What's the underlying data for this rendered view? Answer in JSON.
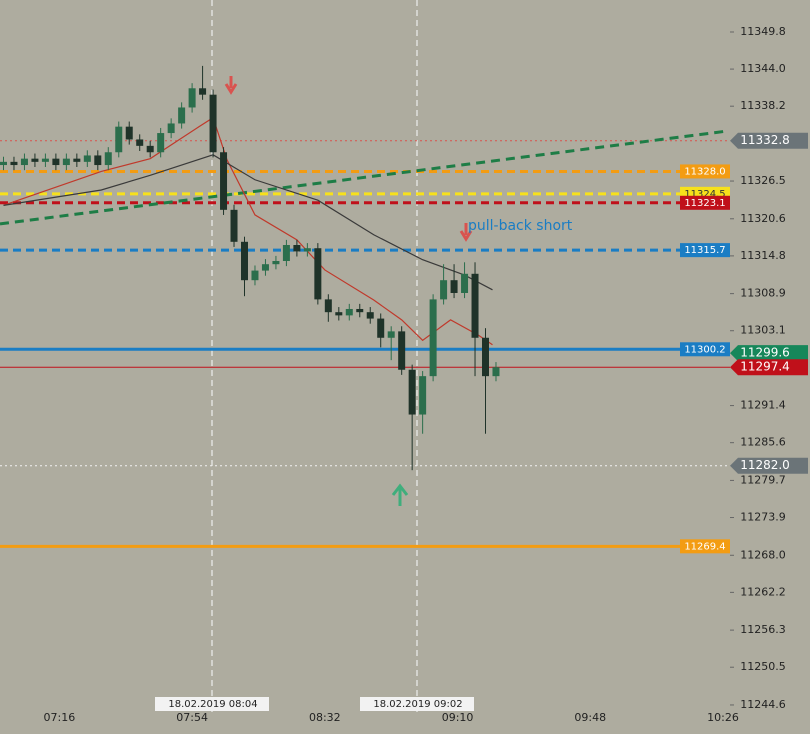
{
  "chart_data": {
    "type": "candlestick",
    "xlim": [
      "06:59",
      "10:28"
    ],
    "xticks": [
      "07:16",
      "07:54",
      "08:32",
      "09:10",
      "09:48",
      "10:26"
    ],
    "ylim": [
      11243.5,
      11354.8
    ],
    "yticks": [
      11349.8,
      {
        "value": 11344,
        "label": "11344.0"
      },
      11338.2,
      11326.5,
      11320.6,
      11314.8,
      11308.9,
      11303.1,
      11291.4,
      11285.6,
      11279.7,
      11273.9,
      {
        "value": 11268,
        "label": "11268.0"
      },
      11262.2,
      11256.3,
      11250.5,
      11244.6
    ],
    "up_color": "#2b6e4c",
    "down_color": "#1f3329",
    "candles": {
      "x": [
        "07:00",
        "07:03",
        "07:06",
        "07:09",
        "07:12",
        "07:15",
        "07:18",
        "07:21",
        "07:24",
        "07:27",
        "07:30",
        "07:33",
        "07:36",
        "07:39",
        "07:42",
        "07:45",
        "07:48",
        "07:51",
        "07:54",
        "07:57",
        "08:00",
        "08:03",
        "08:06",
        "08:09",
        "08:12",
        "08:15",
        "08:18",
        "08:21",
        "08:24",
        "08:27",
        "08:30",
        "08:33",
        "08:36",
        "08:39",
        "08:42",
        "08:45",
        "08:48",
        "08:51",
        "08:54",
        "08:57",
        "09:00",
        "09:03",
        "09:06",
        "09:09",
        "09:12",
        "09:15",
        "09:18",
        "09:21"
      ],
      "open": [
        11329,
        11329.5,
        11329,
        11330,
        11329.5,
        11330,
        11329,
        11330,
        11329.5,
        11330.5,
        11329,
        11331,
        11335,
        11333,
        11332,
        11331,
        11334,
        11335.5,
        11338,
        11341,
        11340,
        11331,
        11322,
        11317,
        11311,
        11312.5,
        11313.5,
        11314,
        11316.5,
        11315.5,
        11316,
        11308,
        11306,
        11305.5,
        11306.5,
        11306,
        11305,
        11302,
        11303,
        11297,
        11290,
        11296,
        11308,
        11311,
        11309,
        11312,
        11302,
        11296
      ],
      "high": [
        11330.3,
        11330.3,
        11330.8,
        11330.8,
        11330.8,
        11330.8,
        11330.8,
        11330.8,
        11331.3,
        11331.3,
        11331.8,
        11335.8,
        11335.8,
        11333.8,
        11332.8,
        11334.8,
        11336.3,
        11338.8,
        11341.8,
        11344.5,
        11340.8,
        11331.8,
        11322.8,
        11317.8,
        11313.3,
        11314.3,
        11314.8,
        11317.3,
        11317.3,
        11316.8,
        11316.8,
        11308.8,
        11306.8,
        11307.3,
        11307.3,
        11306.8,
        11305.8,
        11303.8,
        11303.8,
        11297.8,
        11296.8,
        11308.8,
        11313.5,
        11313.5,
        11313.8,
        11313.8,
        11303.5,
        11298.2
      ],
      "low": [
        11328.2,
        11328.2,
        11328.2,
        11328.7,
        11328.7,
        11328.2,
        11328.2,
        11328.7,
        11328.7,
        11328.2,
        11328.2,
        11330.2,
        11332.2,
        11331.2,
        11330.2,
        11330.2,
        11333.2,
        11334.7,
        11337.2,
        11339.2,
        11330.2,
        11321.2,
        11316.2,
        11308.5,
        11310.2,
        11311.7,
        11312.7,
        11313.2,
        11314.7,
        11314.7,
        11307.2,
        11304.5,
        11304.7,
        11304.7,
        11305.2,
        11304.2,
        11300.5,
        11298.5,
        11296.2,
        11281.3,
        11287,
        11295.2,
        11307.2,
        11308.2,
        11308.2,
        11296,
        11287,
        11295.2
      ],
      "close": [
        11329.5,
        11329,
        11330,
        11329.5,
        11330,
        11329,
        11330,
        11329.5,
        11330.5,
        11329,
        11331,
        11335,
        11333,
        11332,
        11331,
        11334,
        11335.5,
        11338,
        11341,
        11340,
        11331,
        11322,
        11317,
        11311,
        11312.5,
        11313.5,
        11314,
        11316.5,
        11315.5,
        11316,
        11308,
        11306,
        11305.5,
        11306.5,
        11306,
        11305,
        11302,
        11303,
        11297,
        11290,
        11296,
        11308,
        11311,
        11309,
        11312,
        11302,
        11296,
        11297.4
      ]
    },
    "series": [
      {
        "color": "#c0392b",
        "x": [
          "07:00",
          "07:28",
          "07:42",
          "07:56",
          "08:00",
          "08:04",
          "08:12",
          "08:24",
          "08:32",
          "08:46",
          "08:54",
          "09:00",
          "09:08",
          "09:16",
          "09:20"
        ],
        "values": [
          11322.7,
          11328,
          11330,
          11335,
          11336.4,
          11329.8,
          11321.2,
          11317.3,
          11312.6,
          11307.9,
          11304.8,
          11301.6,
          11304.8,
          11302.4,
          11300.9
        ]
      },
      {
        "color": "#3a3a3a",
        "x": [
          "07:00",
          "07:28",
          "07:42",
          "08:00",
          "08:12",
          "08:30",
          "08:46",
          "09:00",
          "09:12",
          "09:20"
        ],
        "values": [
          11322.7,
          11325.1,
          11327.4,
          11330.6,
          11326.7,
          11323.5,
          11318.1,
          11314.2,
          11311.8,
          11309.5
        ]
      }
    ],
    "trendline": {
      "color": "#1e7d46",
      "x": [
        "06:59",
        "10:27"
      ],
      "values": [
        11319.8,
        11334.3
      ]
    },
    "levels": [
      {
        "value": 11332.8,
        "label": "11332.8",
        "color": "#d9534f",
        "tag_color": "#6b7478",
        "style": "dotted",
        "tag": "axis"
      },
      {
        "value": 11328,
        "label": "11328.0",
        "color": "#f39c12",
        "tag_color": "#f39c12",
        "style": "dashed",
        "tag": "plot"
      },
      {
        "value": 11324.5,
        "label": "11324.5",
        "color": "#f7e11b",
        "tag_color": "#f7e11b",
        "style": "dashed",
        "tag": "plot"
      },
      {
        "value": 11323.1,
        "label": "11323.1",
        "color": "#c0101a",
        "tag_color": "#c0101a",
        "style": "dashed",
        "tag": "plot"
      },
      {
        "value": 11315.7,
        "label": "11315.7",
        "color": "#1a7dc4",
        "tag_color": "#1a7dc4",
        "style": "dashed",
        "tag": "plot"
      },
      {
        "value": 11299.6,
        "label": "11299.6",
        "color": "#16875a",
        "tag_color": "#16875a",
        "style": "none",
        "tag": "axis"
      },
      {
        "value": 11300.2,
        "label": "11300.2",
        "color": "#1a7dc4",
        "tag_color": "#1a7dc4",
        "style": "solid",
        "tag": "plot"
      },
      {
        "value": 11297.4,
        "label": "11297.4",
        "color": "#c0101a",
        "tag_color": "#c0101a",
        "style": "thin",
        "tag": "axis"
      },
      {
        "value": 11282,
        "label": "11282.0",
        "color": "#f2f2f2",
        "tag_color": "#6b7478",
        "style": "dotted",
        "tag": "axis"
      },
      {
        "value": 11269.4,
        "label": "11269.4",
        "color": "#f39c12",
        "tag_color": "#f39c12",
        "style": "solid",
        "tag": "plot"
      }
    ],
    "crosshairs": [
      {
        "label": "18.02.2019 08:04"
      },
      {
        "label": "18.02.2019 09:02"
      }
    ],
    "annotation": "pull-back short"
  }
}
